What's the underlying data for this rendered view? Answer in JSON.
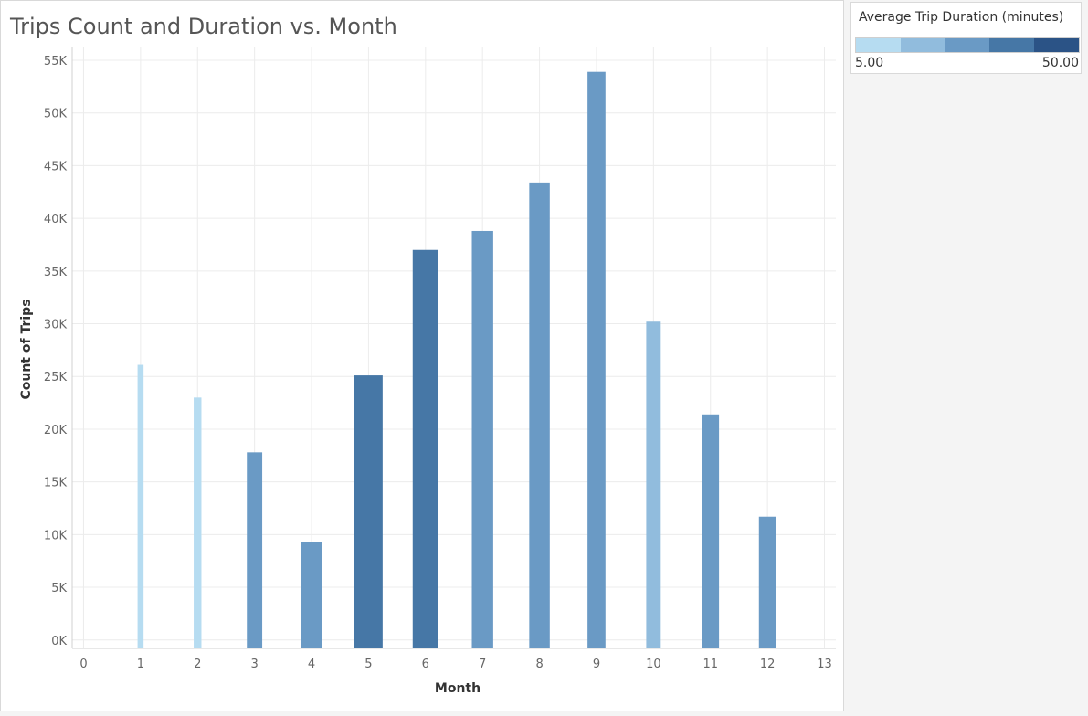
{
  "title": "Trips Count and Duration vs. Month",
  "legend": {
    "title": "Average Trip Duration (minutes)",
    "min_label": "5.00",
    "max_label": "50.00",
    "ramp_colors": [
      "#b6dcf1",
      "#91bcdd",
      "#6a9ac5",
      "#4677a6",
      "#2b5386"
    ]
  },
  "chart_data": {
    "type": "bar",
    "title": "Trips Count and Duration vs. Month",
    "xlabel": "Month",
    "ylabel": "Count of Trips",
    "x_ticks": [
      "0",
      "1",
      "2",
      "3",
      "4",
      "5",
      "6",
      "7",
      "8",
      "9",
      "10",
      "11",
      "12",
      "13"
    ],
    "y_ticks": [
      "0K",
      "5K",
      "10K",
      "15K",
      "20K",
      "25K",
      "30K",
      "35K",
      "40K",
      "45K",
      "50K",
      "55K"
    ],
    "xlim": [
      -0.2,
      13.2
    ],
    "ylim": [
      -800,
      56300
    ],
    "grid": true,
    "legend_position": "top-right",
    "bars": [
      {
        "month": 1,
        "count": 26100,
        "color": "#b6dcf1",
        "relwidth": 0.35
      },
      {
        "month": 2,
        "count": 23000,
        "color": "#b6dcf1",
        "relwidth": 0.45
      },
      {
        "month": 3,
        "count": 17800,
        "color": "#6a9ac5",
        "relwidth": 0.9
      },
      {
        "month": 4,
        "count": 9300,
        "color": "#6a9ac5",
        "relwidth": 1.2
      },
      {
        "month": 5,
        "count": 25100,
        "color": "#4677a6",
        "relwidth": 1.65
      },
      {
        "month": 6,
        "count": 37000,
        "color": "#4677a6",
        "relwidth": 1.5
      },
      {
        "month": 7,
        "count": 38800,
        "color": "#6a9ac5",
        "relwidth": 1.25
      },
      {
        "month": 8,
        "count": 43400,
        "color": "#6a9ac5",
        "relwidth": 1.2
      },
      {
        "month": 9,
        "count": 53900,
        "color": "#6a9ac5",
        "relwidth": 1.05
      },
      {
        "month": 10,
        "count": 30200,
        "color": "#91bcdd",
        "relwidth": 0.85
      },
      {
        "month": 11,
        "count": 21400,
        "color": "#6a9ac5",
        "relwidth": 1.0
      },
      {
        "month": 12,
        "count": 11700,
        "color": "#6a9ac5",
        "relwidth": 1.0
      }
    ]
  }
}
